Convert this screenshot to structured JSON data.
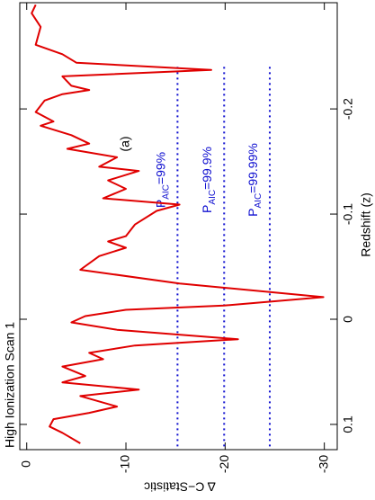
{
  "chart_data": {
    "type": "line",
    "title": "High Ionization Scan 1",
    "xlabel": "Redshift (z)",
    "ylabel": "Δ C−Statistic",
    "annotation": "(a)",
    "color": "#e00000",
    "x": [
      -0.299,
      -0.291,
      -0.278,
      -0.261,
      -0.252,
      -0.244,
      -0.237,
      -0.231,
      -0.222,
      -0.218,
      -0.214,
      -0.208,
      -0.197,
      -0.188,
      -0.184,
      -0.175,
      -0.167,
      -0.162,
      -0.154,
      -0.145,
      -0.141,
      -0.132,
      -0.124,
      -0.115,
      -0.109,
      -0.103,
      -0.09,
      -0.079,
      -0.074,
      -0.068,
      -0.06,
      -0.047,
      -0.034,
      -0.021,
      -0.013,
      -0.009,
      -0.003,
      0.003,
      0.01,
      0.019,
      0.025,
      0.032,
      0.038,
      0.045,
      0.054,
      0.06,
      0.067,
      0.073,
      0.083,
      0.089,
      0.095,
      0.102,
      0.108,
      0.118
    ],
    "values": [
      -0.9,
      -0.5,
      -1.4,
      -0.9,
      -3.6,
      -5.0,
      -18.6,
      -3.6,
      -4.5,
      -6.3,
      -3.6,
      -1.8,
      -0.9,
      -2.7,
      -1.4,
      -4.5,
      -6.3,
      -4.1,
      -9.1,
      -7.3,
      -11.3,
      -8.2,
      -10.0,
      -7.7,
      -15.4,
      -13.1,
      -10.9,
      -10.0,
      -8.2,
      -10.0,
      -7.3,
      -5.4,
      -15.4,
      -29.9,
      -19.9,
      -10.0,
      -5.9,
      -4.5,
      -9.1,
      -21.3,
      -10.9,
      -6.3,
      -7.7,
      -3.6,
      -5.9,
      -3.6,
      -11.3,
      -5.4,
      -9.1,
      -6.3,
      -2.7,
      -2.3,
      -3.6,
      -5.4
    ],
    "xlim": [
      -0.301,
      0.124
    ],
    "xticks": [
      -0.2,
      -0.1,
      0,
      0.1
    ],
    "ylim": [
      0.7,
      -31.3
    ],
    "yticks": [
      0,
      -10,
      -20,
      -30
    ],
    "levels": {
      "color": "#1010d0",
      "start": -0.24,
      "items": [
        {
          "value": -15.2,
          "main": "P",
          "sub": "AIC",
          "rest": "=99%"
        },
        {
          "value": -19.9,
          "main": "P",
          "sub": "AIC",
          "rest": "=99.9%"
        },
        {
          "value": -24.5,
          "main": "P",
          "sub": "AIC",
          "rest": "=99.99%"
        }
      ]
    }
  }
}
